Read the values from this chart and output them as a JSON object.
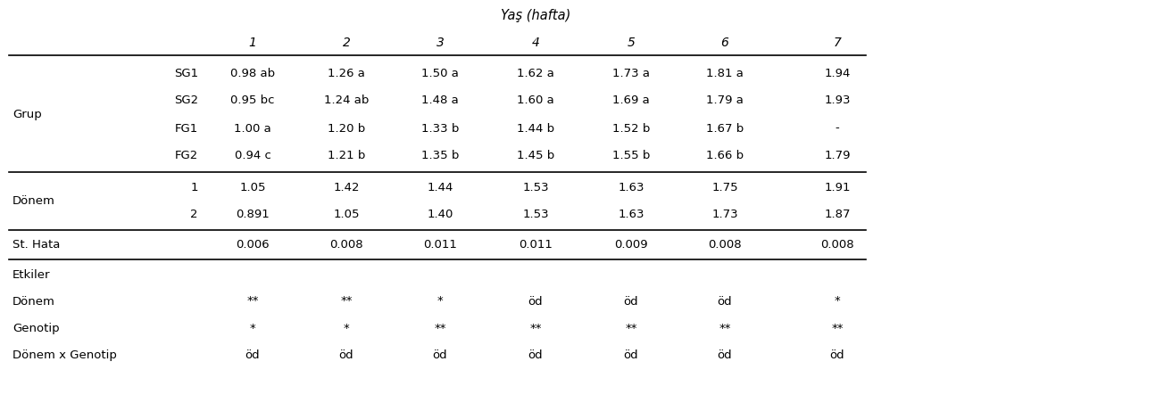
{
  "title": "Yaş (hafta)",
  "col_headers": [
    "1",
    "2",
    "3",
    "4",
    "5",
    "6",
    "7"
  ],
  "rows": [
    [
      "Grup",
      "SG1",
      "0.98 ab",
      "1.26 a",
      "1.50 a",
      "1.62 a",
      "1.73 a",
      "1.81 a",
      "1.94"
    ],
    [
      "",
      "SG2",
      "0.95 bc",
      "1.24 ab",
      "1.48 a",
      "1.60 a",
      "1.69 a",
      "1.79 a",
      "1.93"
    ],
    [
      "",
      "FG1",
      "1.00 a",
      "1.20 b",
      "1.33 b",
      "1.44 b",
      "1.52 b",
      "1.67 b",
      "-"
    ],
    [
      "",
      "FG2",
      "0.94 c",
      "1.21 b",
      "1.35 b",
      "1.45 b",
      "1.55 b",
      "1.66 b",
      "1.79"
    ],
    [
      "Dönem",
      "1",
      "1.05",
      "1.42",
      "1.44",
      "1.53",
      "1.63",
      "1.75",
      "1.91"
    ],
    [
      "",
      "2",
      "0.891",
      "1.05",
      "1.40",
      "1.53",
      "1.63",
      "1.73",
      "1.87"
    ],
    [
      "St. Hata",
      "",
      "0.006",
      "0.008",
      "0.011",
      "0.011",
      "0.009",
      "0.008",
      "0.008"
    ],
    [
      "Etkiler",
      "",
      "",
      "",
      "",
      "",
      "",
      "",
      ""
    ],
    [
      "Dönem",
      "",
      "**",
      "**",
      "*",
      "öd",
      "öd",
      "öd",
      "*"
    ],
    [
      "Genotip",
      "",
      "*",
      "*",
      "**",
      "**",
      "**",
      "**",
      "**"
    ],
    [
      "Dönem x Genotip",
      "",
      "öd",
      "öd",
      "öd",
      "öd",
      "öd",
      "öd",
      "öd"
    ]
  ],
  "background_color": "#ffffff",
  "text_color": "#000000",
  "font_size": 9.5,
  "title_font_size": 10.5,
  "header_font_size": 10.0
}
